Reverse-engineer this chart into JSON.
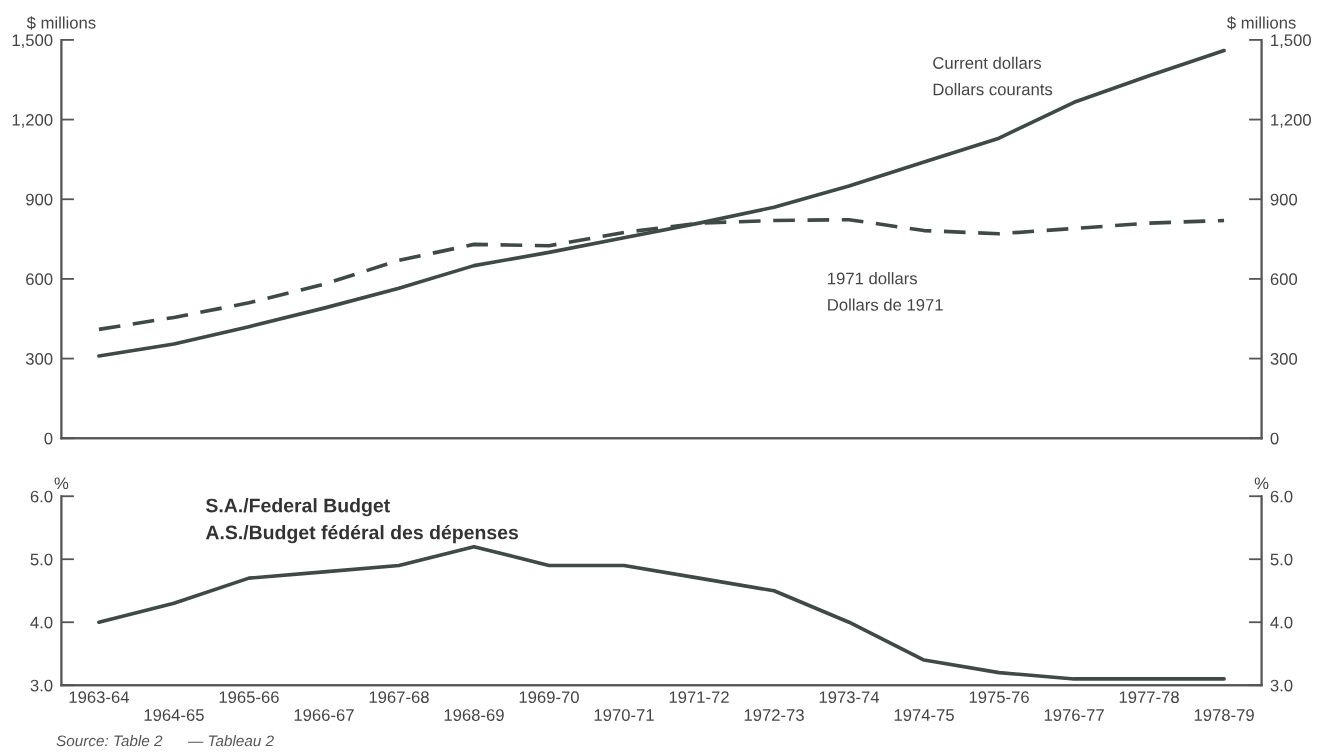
{
  "chart_data": [
    {
      "type": "line",
      "ylabel": "$ millions",
      "y2label": "$ millions",
      "categories": [
        "1963-64",
        "1964-65",
        "1965-66",
        "1966-67",
        "1967-68",
        "1968-69",
        "1969-70",
        "1970-71",
        "1971-72",
        "1972-73",
        "1973-74",
        "1974-75",
        "1975-76",
        "1976-77",
        "1977-78",
        "1978-79"
      ],
      "series": [
        {
          "name": "Current dollars\nDollars courants",
          "color": "#3f4a46",
          "line_style": "solid",
          "values": [
            310,
            355,
            420,
            490,
            565,
            650,
            700,
            755,
            810,
            870,
            950,
            1040,
            1130,
            1265,
            1365,
            1460
          ]
        },
        {
          "name": "1971 dollars\nDollars de 1971",
          "color": "#3f4a46",
          "line_style": "dashed",
          "values": [
            410,
            455,
            510,
            580,
            670,
            730,
            725,
            775,
            810,
            820,
            823,
            782,
            770,
            790,
            810,
            820
          ]
        }
      ],
      "ylim": [
        0,
        1500
      ],
      "yticks": [
        0,
        300,
        600,
        900,
        {
          "value": 1200,
          "label": "1,200"
        },
        {
          "value": 1500,
          "label": "1,500"
        }
      ],
      "y2lim": [
        0,
        1500
      ],
      "y2ticks": [
        0,
        300,
        600,
        900,
        {
          "value": 1200,
          "label": "1,200"
        },
        {
          "value": 1500,
          "label": "1,500"
        }
      ],
      "tick_labels": "y",
      "grid": false,
      "legend": false
    },
    {
      "type": "line",
      "title": "S.A./Federal Budget\nA.S./Budget fédéral des dépenses",
      "ylabel": "%",
      "y2label": "%",
      "categories": [
        "1963-64",
        "1964-65",
        "1965-66",
        "1966-67",
        "1967-68",
        "1968-69",
        "1969-70",
        "1970-71",
        "1971-72",
        "1972-73",
        "1973-74",
        "1974-75",
        "1975-76",
        "1976-77",
        "1977-78",
        "1978-79"
      ],
      "series": [
        {
          "color": "#3f4a46",
          "line_style": "solid",
          "values": [
            4.0,
            4.3,
            4.7,
            4.8,
            4.9,
            5.2,
            4.9,
            4.9,
            4.7,
            4.5,
            4.0,
            3.4,
            3.2,
            3.1,
            3.1,
            3.1
          ]
        }
      ],
      "ylim": [
        3.0,
        6.0
      ],
      "yticks": [
        {
          "value": 3,
          "label": "3.0"
        },
        {
          "value": 4,
          "label": "4.0"
        },
        {
          "value": 5,
          "label": "5.0"
        },
        {
          "value": 6,
          "label": "6.0"
        }
      ],
      "y2lim": [
        3.0,
        6.0
      ],
      "y2ticks": [
        {
          "value": 3,
          "label": "3.0"
        },
        {
          "value": 4,
          "label": "4.0"
        },
        {
          "value": 5,
          "label": "5.0"
        },
        {
          "value": 6,
          "label": "6.0"
        }
      ],
      "annotations": [
        "Source: Table 2      — Tableau 2"
      ],
      "grid": false,
      "legend": false
    }
  ]
}
